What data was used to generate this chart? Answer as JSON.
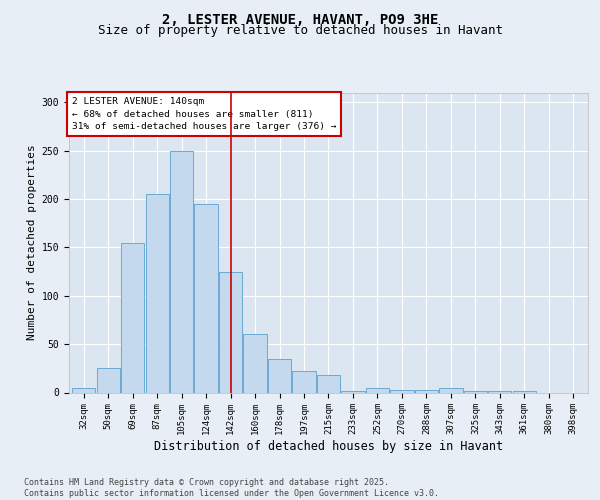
{
  "title1": "2, LESTER AVENUE, HAVANT, PO9 3HE",
  "title2": "Size of property relative to detached houses in Havant",
  "xlabel": "Distribution of detached houses by size in Havant",
  "ylabel": "Number of detached properties",
  "annotation_line1": "2 LESTER AVENUE: 140sqm",
  "annotation_line2": "← 68% of detached houses are smaller (811)",
  "annotation_line3": "31% of semi-detached houses are larger (376) →",
  "categories": [
    "32sqm",
    "50sqm",
    "69sqm",
    "87sqm",
    "105sqm",
    "124sqm",
    "142sqm",
    "160sqm",
    "178sqm",
    "197sqm",
    "215sqm",
    "233sqm",
    "252sqm",
    "270sqm",
    "288sqm",
    "307sqm",
    "325sqm",
    "343sqm",
    "361sqm",
    "380sqm",
    "398sqm"
  ],
  "bar_values": [
    5,
    25,
    155,
    205,
    250,
    195,
    125,
    60,
    35,
    22,
    18,
    2,
    5,
    3,
    3,
    5,
    2,
    2,
    2,
    0,
    0
  ],
  "bar_color": "#c5d9ee",
  "bar_edge_color": "#6aaad4",
  "vertical_line_index": 6,
  "vertical_line_color": "#cc0000",
  "background_color": "#e8eef5",
  "plot_bg_color": "#dce6f0",
  "ylim": [
    0,
    310
  ],
  "yticks": [
    0,
    50,
    100,
    150,
    200,
    250,
    300
  ],
  "title_fontsize": 10,
  "subtitle_fontsize": 9,
  "axis_label_fontsize": 8,
  "tick_fontsize": 6.5,
  "annotation_fontsize": 6.8,
  "footer": "Contains HM Land Registry data © Crown copyright and database right 2025.\nContains public sector information licensed under the Open Government Licence v3.0.",
  "footer_fontsize": 6.0
}
